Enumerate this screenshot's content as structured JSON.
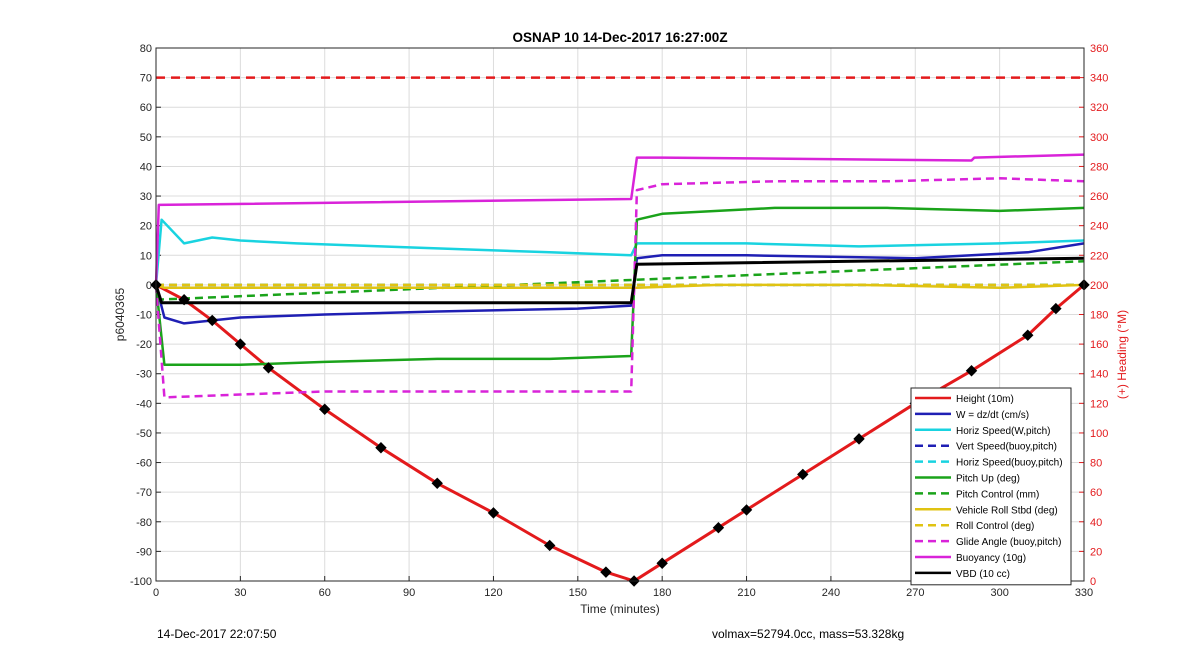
{
  "chart_data": {
    "type": "line",
    "title": "OSNAP 10 14-Dec-2017 16:27:00Z",
    "xlabel": "Time (minutes)",
    "ylabel": "p6040365",
    "y2label": "(+) Heading (°M)",
    "xlim": [
      0,
      330
    ],
    "ylim": [
      -100,
      80
    ],
    "y2lim": [
      0,
      360
    ],
    "x_ticks": [
      0,
      30,
      60,
      90,
      120,
      150,
      180,
      210,
      240,
      270,
      300,
      330
    ],
    "y_ticks": [
      -100,
      -90,
      -80,
      -70,
      -60,
      -50,
      -40,
      -30,
      -20,
      -10,
      0,
      10,
      20,
      30,
      40,
      50,
      60,
      70,
      80
    ],
    "y2_ticks": [
      0,
      20,
      40,
      60,
      80,
      100,
      120,
      140,
      160,
      180,
      200,
      220,
      240,
      260,
      280,
      300,
      320,
      340,
      360
    ],
    "grid": true,
    "legend_position": "bottom-right",
    "heading_dashed_ref": 340,
    "series": [
      {
        "name": "Height (10m)",
        "color": "#e31a1c",
        "style": "solid",
        "x": [
          0,
          10,
          20,
          30,
          40,
          60,
          80,
          100,
          120,
          140,
          160,
          170,
          180,
          200,
          210,
          230,
          250,
          270,
          290,
          310,
          320,
          330
        ],
        "y": [
          0,
          -5,
          -12,
          -20,
          -28,
          -42,
          -55,
          -67,
          -77,
          -88,
          -97,
          -100,
          -94,
          -82,
          -76,
          -64,
          -52,
          -40,
          -29,
          -17,
          -8,
          0
        ]
      },
      {
        "name": "W = dz/dt (cm/s)",
        "color": "#1f1fb4",
        "style": "solid",
        "x": [
          0,
          3,
          10,
          30,
          60,
          100,
          150,
          169,
          171,
          180,
          210,
          270,
          310,
          330
        ],
        "y": [
          0,
          -11,
          -13,
          -11,
          -10,
          -9,
          -8,
          -7,
          9,
          10,
          10,
          9,
          11,
          14
        ]
      },
      {
        "name": "Horiz Speed(W,pitch)",
        "color": "#19d3e0",
        "style": "solid",
        "x": [
          0,
          2,
          10,
          20,
          30,
          50,
          80,
          110,
          140,
          169,
          171,
          180,
          210,
          250,
          300,
          330
        ],
        "y": [
          0,
          22,
          14,
          16,
          15,
          14,
          13,
          12,
          11,
          10,
          14,
          14,
          14,
          13,
          14,
          15
        ]
      },
      {
        "name": "Vert Speed(buoy,pitch)",
        "color": "#1f1fb4",
        "style": "dashed",
        "x": [
          0,
          330
        ],
        "y": [
          0,
          0
        ]
      },
      {
        "name": "Horiz Speed(buoy,pitch)",
        "color": "#19d3e0",
        "style": "dashed",
        "x": [
          0,
          330
        ],
        "y": [
          0,
          0
        ]
      },
      {
        "name": "Pitch Up (deg)",
        "color": "#1aa31a",
        "style": "solid",
        "x": [
          0,
          3,
          30,
          60,
          100,
          140,
          169,
          171,
          180,
          220,
          260,
          300,
          330
        ],
        "y": [
          0,
          -27,
          -27,
          -26,
          -25,
          -25,
          -24,
          22,
          24,
          26,
          26,
          25,
          26
        ]
      },
      {
        "name": "Pitch Control (mm)",
        "color": "#1aa31a",
        "style": "dashed",
        "x": [
          0,
          330
        ],
        "y": [
          -5,
          8
        ]
      },
      {
        "name": "Vehicle Roll Stbd (deg)",
        "color": "#e0c312",
        "style": "solid",
        "x": [
          0,
          3,
          40,
          80,
          120,
          169,
          171,
          200,
          250,
          300,
          330
        ],
        "y": [
          0,
          -1,
          -1,
          -1,
          -1,
          -1,
          -1,
          0,
          0,
          -1,
          0
        ]
      },
      {
        "name": "Roll Control (deg)",
        "color": "#e0c312",
        "style": "dashed",
        "x": [
          0,
          330
        ],
        "y": [
          0,
          0
        ]
      },
      {
        "name": "Glide Angle (buoy,pitch)",
        "color": "#d923d9",
        "style": "dashed",
        "x": [
          0,
          3,
          30,
          60,
          100,
          140,
          169,
          171,
          180,
          220,
          260,
          300,
          330
        ],
        "y": [
          0,
          -38,
          -37,
          -36,
          -36,
          -36,
          -36,
          32,
          34,
          35,
          35,
          36,
          35
        ]
      },
      {
        "name": "Buoyancy (10g)",
        "color": "#d923d9",
        "style": "solid",
        "x": [
          0,
          1,
          169,
          171,
          180,
          290,
          291,
          330
        ],
        "y": [
          0,
          27,
          29,
          43,
          43,
          42,
          43,
          44
        ]
      },
      {
        "name": "VBD (10 cc)",
        "color": "#000000",
        "style": "solid",
        "x": [
          0,
          2,
          169,
          171,
          330
        ],
        "y": [
          0,
          -6,
          -6,
          7,
          9
        ]
      }
    ]
  },
  "footer": {
    "left": "14-Dec-2017 22:07:50",
    "right": "volmax=52794.0cc, mass=53.328kg"
  }
}
